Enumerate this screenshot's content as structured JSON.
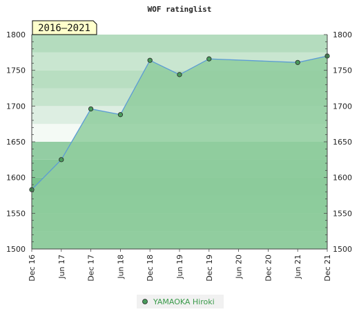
{
  "chart_data": {
    "type": "area",
    "title": "WOF ratinglist",
    "period_label": "2016–2021",
    "x": [
      "Dec 16",
      "Jun 17",
      "Dec 17",
      "Jun 18",
      "Dec 18",
      "Jun 19",
      "Dec 19",
      "Jun 20",
      "Dec 20",
      "Jun 21",
      "Dec 21"
    ],
    "y_ticks": [
      "1500",
      "1550",
      "1600",
      "1650",
      "1700",
      "1750",
      "1800"
    ],
    "ylim": [
      1500,
      1800
    ],
    "series": [
      {
        "name": "YAMAOKA Hiroki",
        "points": [
          {
            "x": "Dec 16",
            "y": 1583
          },
          {
            "x": "Jun 17",
            "y": 1625
          },
          {
            "x": "Dec 17",
            "y": 1696
          },
          {
            "x": "Jun 18",
            "y": 1688
          },
          {
            "x": "Dec 18",
            "y": 1764
          },
          {
            "x": "Jun 19",
            "y": 1744
          },
          {
            "x": "Dec 19",
            "y": 1766
          },
          {
            "x": "Jun 21",
            "y": 1761
          },
          {
            "x": "Dec 21",
            "y": 1770
          }
        ]
      }
    ],
    "colors": {
      "fill": "#8fcc9e",
      "line": "#5b9bd5",
      "marker": "#4a9a5c",
      "legend_text": "#3a9a4a"
    }
  }
}
